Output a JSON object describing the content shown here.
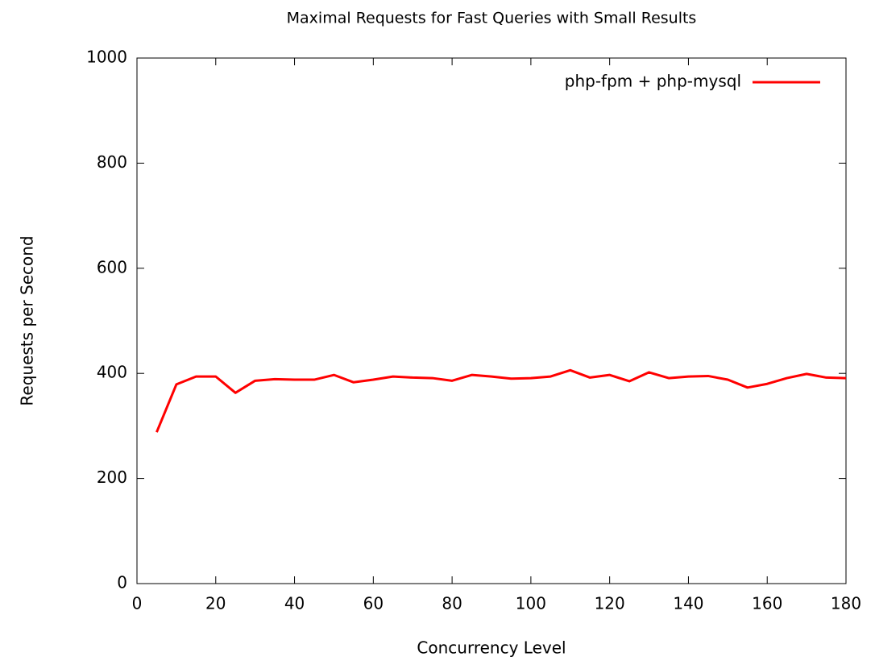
{
  "chart_data": {
    "type": "line",
    "title": "Maximal Requests for Fast Queries with Small Results",
    "xlabel": "Concurrency Level",
    "ylabel": "Requests per Second",
    "x": [
      5,
      10,
      15,
      20,
      25,
      30,
      35,
      40,
      45,
      50,
      55,
      60,
      65,
      70,
      75,
      80,
      85,
      90,
      95,
      100,
      105,
      110,
      115,
      120,
      125,
      130,
      135,
      140,
      145,
      150,
      155,
      160,
      165,
      170,
      175,
      180
    ],
    "series": [
      {
        "name": "php-fpm + php-mysql",
        "color": "#ff0000",
        "values": [
          288,
          379,
          394,
          394,
          363,
          386,
          389,
          388,
          388,
          397,
          383,
          388,
          394,
          392,
          391,
          386,
          397,
          394,
          390,
          391,
          394,
          406,
          392,
          397,
          385,
          402,
          391,
          394,
          395,
          388,
          373,
          380,
          391,
          399,
          392,
          391
        ]
      }
    ],
    "xlim": [
      0,
      180
    ],
    "xticks": [
      0,
      20,
      40,
      60,
      80,
      100,
      120,
      140,
      160,
      180
    ],
    "ylim": [
      0,
      1000
    ],
    "yticks": [
      0,
      200,
      400,
      600,
      800,
      1000
    ],
    "legend": "top-right"
  }
}
